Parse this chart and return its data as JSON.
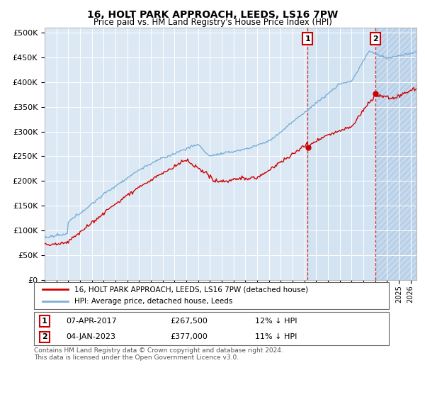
{
  "title": "16, HOLT PARK APPROACH, LEEDS, LS16 7PW",
  "subtitle": "Price paid vs. HM Land Registry's House Price Index (HPI)",
  "ylim": [
    0,
    500000
  ],
  "yticks": [
    0,
    50000,
    100000,
    150000,
    200000,
    250000,
    300000,
    350000,
    400000,
    450000,
    500000
  ],
  "ytick_labels": [
    "£0",
    "£50K",
    "£100K",
    "£150K",
    "£200K",
    "£250K",
    "£300K",
    "£350K",
    "£400K",
    "£450K",
    "£500K"
  ],
  "hpi_color": "#7aafd4",
  "price_color": "#cc0000",
  "background_color": "#dce9f5",
  "hatch_color": "#c5d9ee",
  "grid_color": "#ffffff",
  "legend_label_price": "16, HOLT PARK APPROACH, LEEDS, LS16 7PW (detached house)",
  "legend_label_hpi": "HPI: Average price, detached house, Leeds",
  "marker1_year": 2017.27,
  "marker1_price": 267500,
  "marker2_year": 2023.01,
  "marker2_price": 377000,
  "xmin": 1995,
  "xmax": 2026.5,
  "footer": "Contains HM Land Registry data © Crown copyright and database right 2024.\nThis data is licensed under the Open Government Licence v3.0."
}
